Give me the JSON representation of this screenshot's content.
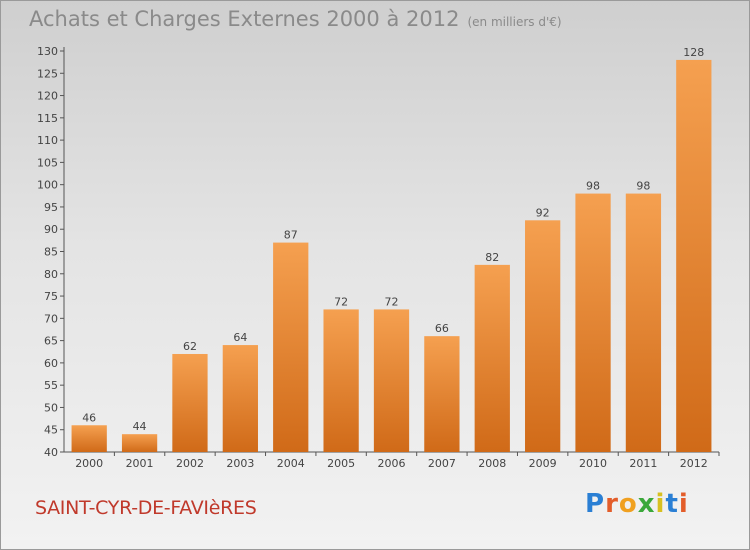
{
  "header": {
    "title": "Achats et Charges Externes 2000 à 2012",
    "subtitle": "(en milliers d'€)"
  },
  "footer": {
    "commune": "SAINT-CYR-DE-FAVIèRES",
    "brand": "Proxiti"
  },
  "chart_data": {
    "type": "bar",
    "title": "Achats et Charges Externes 2000 à 2012",
    "subtitle": "(en milliers d'€)",
    "xlabel": "",
    "ylabel": "",
    "categories": [
      "2000",
      "2001",
      "2002",
      "2003",
      "2004",
      "2005",
      "2006",
      "2007",
      "2008",
      "2009",
      "2010",
      "2011",
      "2012"
    ],
    "values": [
      46,
      44,
      62,
      64,
      87,
      72,
      72,
      66,
      82,
      92,
      98,
      98,
      128
    ],
    "data_labels": [
      "46",
      "44",
      "62",
      "64",
      "87",
      "72",
      "72",
      "66",
      "82",
      "92",
      "98",
      "98",
      "128"
    ],
    "ylim": [
      40,
      130
    ],
    "yticks": [
      40,
      45,
      50,
      55,
      60,
      65,
      70,
      75,
      80,
      85,
      90,
      95,
      100,
      105,
      110,
      115,
      120,
      125,
      130
    ],
    "grid": false,
    "colors": {
      "bar_top": "#f5a050",
      "bar_bottom": "#d06a18",
      "axis": "#555555",
      "label": "#444444"
    }
  }
}
